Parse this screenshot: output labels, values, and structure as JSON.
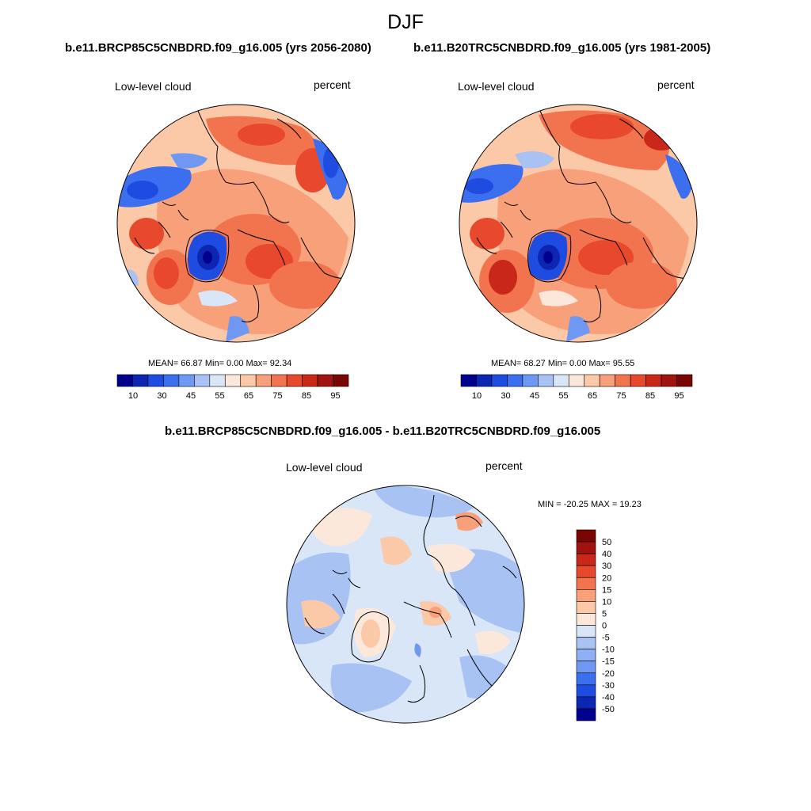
{
  "figure": {
    "title": "DJF",
    "case_a": "b.e11.BRCP85C5CNBDRD.f09_g16.005 (yrs 2056-2080)",
    "case_b": "b.e11.B20TRC5CNBDRD.f09_g16.005 (yrs 1981-2005)",
    "diff_title": "b.e11.BRCP85C5CNBDRD.f09_g16.005 - b.e11.B20TRC5CNBDRD.f09_g16.005"
  },
  "panels": [
    {
      "variable": "Low-level cloud",
      "units": "percent",
      "stats": "MEAN=  66.87  Min=   0.00  Max=  92.34",
      "colorbar_ticks": [
        "10",
        "30",
        "45",
        "55",
        "65",
        "75",
        "85",
        "95"
      ]
    },
    {
      "variable": "Low-level cloud",
      "units": "percent",
      "stats": "MEAN=  68.27  Min=   0.00  Max=  95.55",
      "colorbar_ticks": [
        "10",
        "30",
        "45",
        "55",
        "65",
        "75",
        "85",
        "95"
      ]
    },
    {
      "variable": "Low-level cloud",
      "units": "percent",
      "stats": "MIN = -20.25 MAX =  19.23",
      "colorbar_ticks": [
        "50",
        "40",
        "30",
        "20",
        "15",
        "10",
        "5",
        "0",
        "-5",
        "-10",
        "-15",
        "-20",
        "-30",
        "-40",
        "-50"
      ]
    }
  ],
  "colors": {
    "horizontal_scale": [
      "#00008f",
      "#0d26b2",
      "#1f4ce0",
      "#3c6ff0",
      "#6f98f2",
      "#a8c2f4",
      "#d9e6f7",
      "#fbe8da",
      "#fbc8a8",
      "#f7a07a",
      "#f2744f",
      "#e8492c",
      "#c9271a",
      "#a1130e",
      "#7a0604"
    ],
    "vertical_scale": [
      "#7a0604",
      "#a1130e",
      "#c9271a",
      "#e8492c",
      "#f2744f",
      "#f7a07a",
      "#fbc8a8",
      "#fbe8da",
      "#d9e6f7",
      "#a8c2f4",
      "#8fb0f2",
      "#6f98f2",
      "#3c6ff0",
      "#1f4ce0",
      "#0d26b2",
      "#00008f"
    ]
  }
}
